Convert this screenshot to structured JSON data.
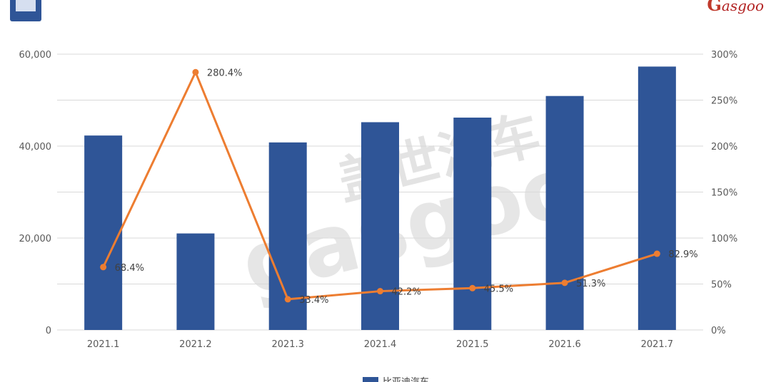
{
  "header": {
    "title": "",
    "logo_text": "asgoo"
  },
  "chart_data": {
    "type": "bar",
    "categories": [
      "2021.1",
      "2021.2",
      "2021.3",
      "2021.4",
      "2021.5",
      "2021.6",
      "2021.7"
    ],
    "series": [
      {
        "name": "比亚迪汽车",
        "kind": "bar",
        "axis": "left",
        "color": "#2f5597",
        "values": [
          42300,
          21000,
          40800,
          45200,
          46200,
          50900,
          57300
        ]
      },
      {
        "name": "",
        "kind": "line",
        "axis": "right",
        "color": "#ed7d31",
        "values": [
          68.4,
          280.4,
          33.4,
          42.2,
          45.5,
          51.3,
          82.9
        ],
        "labels": [
          "68.4%",
          "280.4%",
          "33.4%",
          "42.2%",
          "45.5%",
          "51.3%",
          "82.9%"
        ]
      }
    ],
    "y_left": {
      "lim": [
        0,
        60000
      ],
      "ticks": [
        0,
        20000,
        40000,
        60000
      ],
      "tick_labels": [
        "0",
        "20,000",
        "40,000",
        "60,000"
      ]
    },
    "y_right": {
      "lim": [
        0,
        300
      ],
      "ticks": [
        0,
        50,
        100,
        150,
        200,
        250,
        300
      ],
      "tick_labels": [
        "0%",
        "50%",
        "100%",
        "150%",
        "200%",
        "250%",
        "300%"
      ]
    },
    "grid": true,
    "legend": "bottom-center"
  },
  "watermark": {
    "cn": "盖世汽车",
    "en": "gasgoo"
  }
}
